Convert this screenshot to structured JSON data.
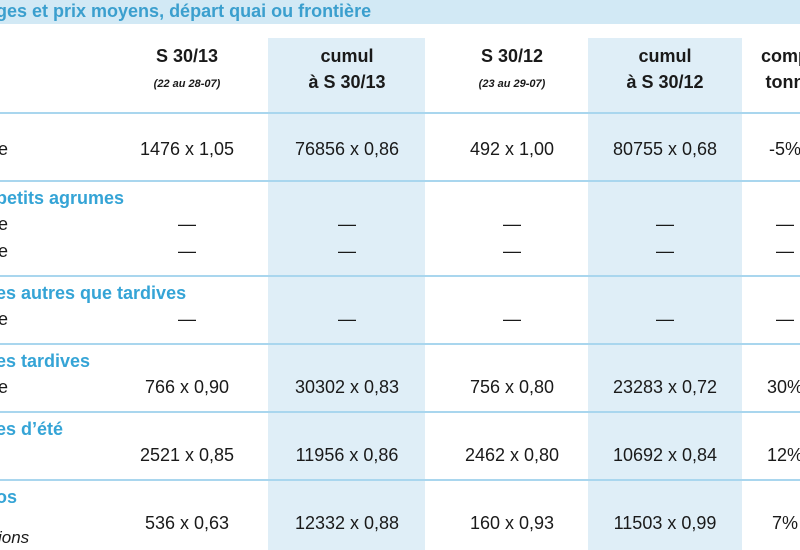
{
  "header": {
    "title": "ges et prix moyens, départ quai ou frontière"
  },
  "columns": [
    {
      "line1": "S 30/13",
      "line2": "(22 au 28-07)"
    },
    {
      "line1": "cumul",
      "line2": "à S 30/13"
    },
    {
      "line1": "S 30/12",
      "line2": "(23 au 29-07)"
    },
    {
      "line1": "cumul",
      "line2": "à S 30/12"
    },
    {
      "line1": "comp",
      "line2": "tonn"
    }
  ],
  "sections": [
    {
      "rows": [
        {
          "label": "e",
          "cells": [
            "1476 x 1,05",
            "76856 x 0,86",
            "492 x 1,00",
            "80755 x 0,68",
            "-5%"
          ]
        }
      ]
    },
    {
      "title": "petits agrumes",
      "rows": [
        {
          "label": "e",
          "cells": [
            "—",
            "—",
            "—",
            "—",
            "—"
          ]
        },
        {
          "label": "e",
          "cells": [
            "—",
            "—",
            "—",
            "—",
            "—"
          ]
        }
      ]
    },
    {
      "title": "es autres que tardives",
      "rows": [
        {
          "label": "e",
          "cells": [
            "—",
            "—",
            "—",
            "—",
            "—"
          ]
        }
      ]
    },
    {
      "title": "es tardives",
      "rows": [
        {
          "label": "e",
          "cells": [
            "766 x 0,90",
            "30302 x 0,83",
            "756 x 0,80",
            "23283 x 0,72",
            "30%"
          ]
        }
      ]
    },
    {
      "title": "es d’été",
      "rows": [
        {
          "cells": [
            "2521 x 0,85",
            "11956 x 0,86",
            "2462 x 0,80",
            "10692 x 0,84",
            "12%"
          ]
        }
      ]
    },
    {
      "title": "os",
      "rows": [
        {
          "cells": [
            "536 x 0,63",
            "12332 x 0,88",
            "160 x 0,93",
            "11503 x 0,99",
            "7%"
          ]
        }
      ]
    }
  ],
  "footer": {
    "note": "ions"
  }
}
